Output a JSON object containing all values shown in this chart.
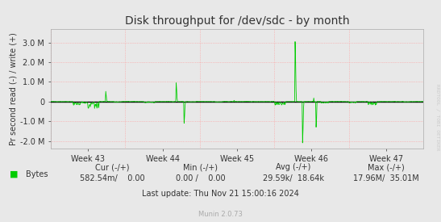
{
  "title": "Disk throughput for /dev/sdc - by month",
  "ylabel": "Pr second read (-) / write (+)",
  "xlabel": "Munin 2.0.73",
  "x_tick_labels": [
    "Week 43",
    "Week 44",
    "Week 45",
    "Week 46",
    "Week 47"
  ],
  "bg_color": "#e8e8e8",
  "line_color": "#00cc00",
  "zero_line_color": "#000000",
  "grid_color": "#ffaaaa",
  "sidebar_text": "RRDTOOL / TOBI OETIKER",
  "legend_label": "Bytes",
  "legend_color": "#00cc00",
  "stats_cur_neg": "582.54m",
  "stats_cur_pos": "0.00",
  "stats_min_neg": "0.00",
  "stats_min_pos": "0.00",
  "stats_avg_neg": "29.59k",
  "stats_avg_pos": "18.64k",
  "stats_max_neg": "17.96M",
  "stats_max_pos": "35.01M",
  "last_update": "Last update: Thu Nov 21 15:00:16 2024"
}
